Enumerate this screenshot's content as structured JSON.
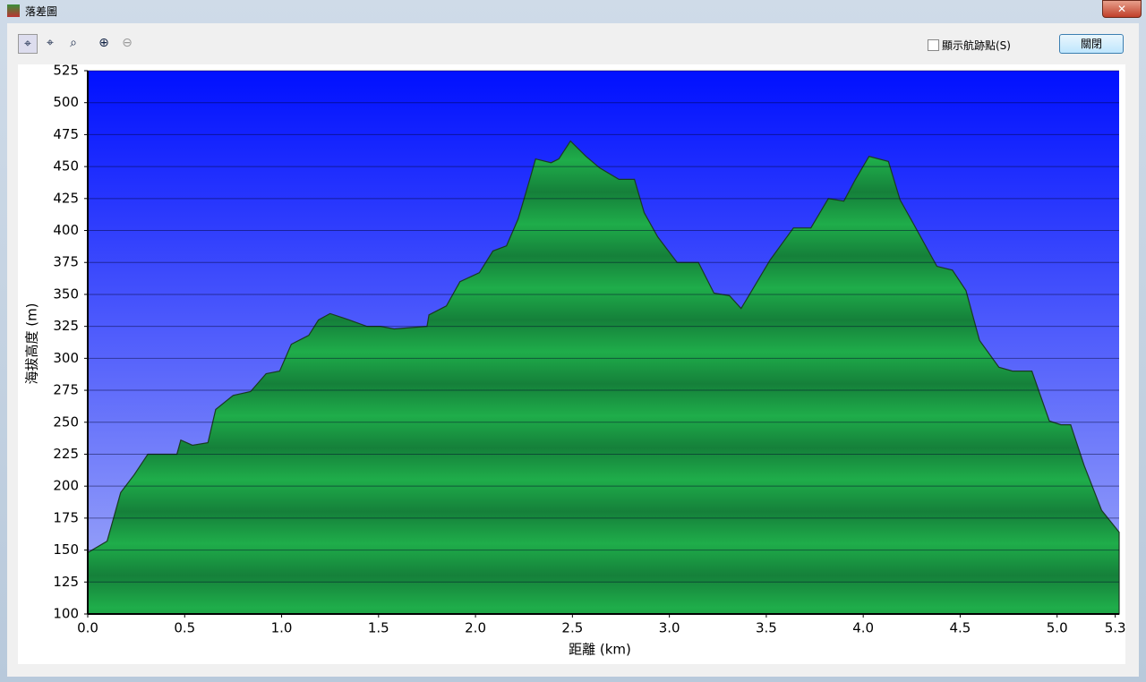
{
  "window": {
    "title": "落差圖",
    "checkbox_label": "顯示航跡點(S)",
    "close_button": "關閉"
  },
  "chart_data": {
    "type": "area",
    "xlabel": "距離 (km)",
    "ylabel": "海拔高度 (m)",
    "x": [
      0,
      0.1,
      0.17,
      0.24,
      0.31,
      0.46,
      0.48,
      0.54,
      0.62,
      0.66,
      0.75,
      0.84,
      0.92,
      0.99,
      1.05,
      1.14,
      1.19,
      1.25,
      1.35,
      1.44,
      1.51,
      1.58,
      1.75,
      1.76,
      1.85,
      1.92,
      2.02,
      2.09,
      2.16,
      2.22,
      2.28,
      2.31,
      2.39,
      2.43,
      2.49,
      2.57,
      2.64,
      2.74,
      2.82,
      2.87,
      2.94,
      3.04,
      3.15,
      3.23,
      3.31,
      3.37,
      3.41,
      3.52,
      3.64,
      3.73,
      3.82,
      3.9,
      3.96,
      4.03,
      4.13,
      4.19,
      4.26,
      4.38,
      4.46,
      4.53,
      4.6,
      4.7,
      4.77,
      4.87,
      4.96,
      5.02,
      5.07,
      5.14,
      5.23,
      5.32
    ],
    "y": [
      148,
      157,
      195,
      209,
      225,
      225,
      236,
      232,
      234,
      260,
      271,
      274,
      288,
      290,
      311,
      318,
      330,
      335,
      330,
      325,
      325,
      323,
      325,
      334,
      341,
      360,
      367,
      384,
      388,
      409,
      440,
      456,
      453,
      456,
      470,
      458,
      449,
      440,
      440,
      414,
      395,
      375,
      375,
      351,
      349,
      339,
      349,
      377,
      402,
      402,
      425,
      423,
      440,
      458,
      454,
      424,
      405,
      372,
      369,
      353,
      314,
      293,
      290,
      290,
      251,
      248,
      248,
      216,
      181,
      164
    ],
    "color": "#1ea646",
    "xlim": [
      0,
      5.32
    ],
    "ylim": [
      100,
      525
    ],
    "xticks": [
      {
        "value": 0,
        "label": "0.0"
      },
      0.5,
      {
        "value": 1,
        "label": "1.0"
      },
      1.5,
      {
        "value": 2,
        "label": "2.0"
      },
      2.5,
      {
        "value": 3,
        "label": "3.0"
      },
      3.5,
      {
        "value": 4,
        "label": "4.0"
      },
      4.5,
      {
        "value": 5,
        "label": "5.0"
      },
      5.3
    ],
    "yticks": [
      100,
      125,
      150,
      175,
      200,
      225,
      250,
      275,
      300,
      325,
      350,
      375,
      400,
      425,
      450,
      475,
      500,
      525
    ],
    "grid": true
  }
}
